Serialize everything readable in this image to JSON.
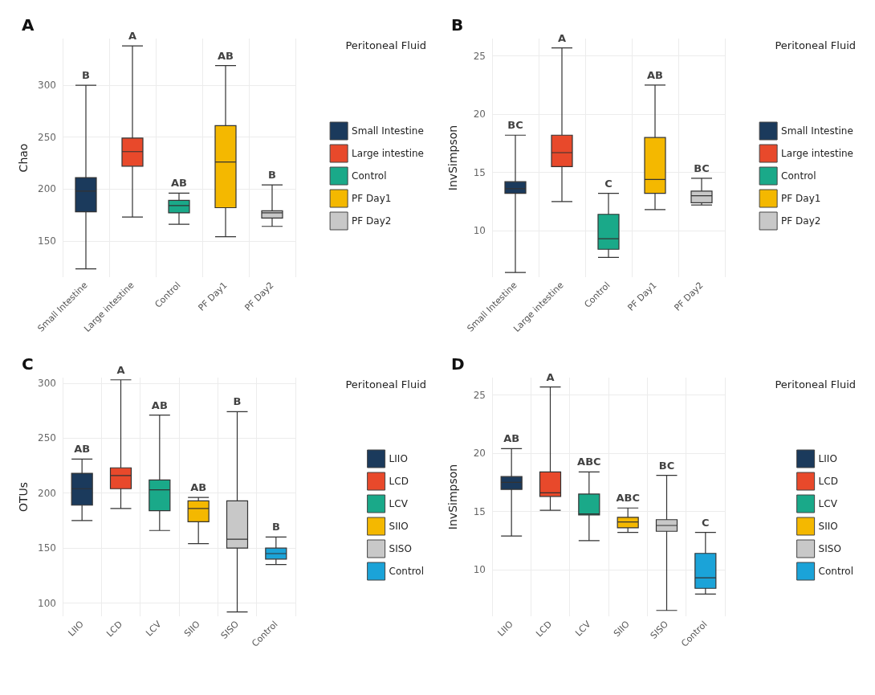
{
  "chart_data": [
    {
      "type": "box",
      "title": "A",
      "ylabel": "Chao",
      "legend_title": "Peritoneal Fluid",
      "legend": "right",
      "grid": true,
      "categories": [
        "Small Intestine",
        "Large intestine",
        "Control",
        "PF Day1",
        "PF Day2"
      ],
      "series": [
        {
          "name": "Small Intestine",
          "color": "#1b3a5c",
          "boxes": [
            {
              "low": 123,
              "q1": 178,
              "median": 198,
              "q3": 211,
              "high": 300
            },
            null,
            null,
            null,
            null
          ]
        },
        {
          "name": "Large intestine",
          "color": "#e8492b",
          "boxes": [
            null,
            {
              "low": 173,
              "q1": 222,
              "median": 236,
              "q3": 249,
              "high": 338
            },
            null,
            null,
            null
          ]
        },
        {
          "name": "Control",
          "color": "#1aa989",
          "boxes": [
            null,
            null,
            {
              "low": 166,
              "q1": 177,
              "median": 184,
              "q3": 189,
              "high": 196
            },
            null,
            null
          ]
        },
        {
          "name": "PF Day1",
          "color": "#f4b800",
          "boxes": [
            null,
            null,
            null,
            {
              "low": 154,
              "q1": 182,
              "median": 226,
              "q3": 261,
              "high": 319
            },
            null
          ]
        },
        {
          "name": "PF Day2",
          "color": "#c8c8c8",
          "boxes": [
            null,
            null,
            null,
            null,
            {
              "low": 164,
              "q1": 172,
              "median": 177,
              "q3": 179,
              "high": 204
            }
          ]
        }
      ],
      "ylim": [
        115,
        345
      ],
      "yticks": [
        150,
        200,
        250,
        300
      ],
      "annotations": [
        {
          "text": "B",
          "x": "Small Intestine",
          "y": 300
        },
        {
          "text": "A",
          "x": "Large intestine",
          "y": 338
        },
        {
          "text": "AB",
          "x": "Control",
          "y": 196
        },
        {
          "text": "AB",
          "x": "PF Day1",
          "y": 319
        },
        {
          "text": "B",
          "x": "PF Day2",
          "y": 204
        }
      ]
    },
    {
      "type": "box",
      "title": "B",
      "ylabel": "InvSimpson",
      "legend_title": "Peritoneal Fluid",
      "legend": "right",
      "grid": true,
      "categories": [
        "Small Intestine",
        "Large intestine",
        "Control",
        "PF Day1",
        "PF Day2"
      ],
      "series": [
        {
          "name": "Small Intestine",
          "color": "#1b3a5c",
          "boxes": [
            {
              "low": 6.4,
              "q1": 13.2,
              "median": 13.6,
              "q3": 14.2,
              "high": 18.2
            },
            null,
            null,
            null,
            null
          ]
        },
        {
          "name": "Large intestine",
          "color": "#e8492b",
          "boxes": [
            null,
            {
              "low": 12.5,
              "q1": 15.5,
              "median": 16.7,
              "q3": 18.2,
              "high": 25.7
            },
            null,
            null,
            null
          ]
        },
        {
          "name": "Control",
          "color": "#1aa989",
          "boxes": [
            null,
            null,
            {
              "low": 7.7,
              "q1": 8.4,
              "median": 9.3,
              "q3": 11.4,
              "high": 13.2
            },
            null,
            null
          ]
        },
        {
          "name": "PF Day1",
          "color": "#f4b800",
          "boxes": [
            null,
            null,
            null,
            {
              "low": 11.8,
              "q1": 13.2,
              "median": 14.4,
              "q3": 18.0,
              "high": 22.5
            },
            null
          ]
        },
        {
          "name": "PF Day2",
          "color": "#c8c8c8",
          "boxes": [
            null,
            null,
            null,
            null,
            {
              "low": 12.2,
              "q1": 12.4,
              "median": 13.0,
              "q3": 13.4,
              "high": 14.5
            }
          ]
        }
      ],
      "ylim": [
        6,
        26.5
      ],
      "yticks": [
        10,
        15,
        20,
        25
      ],
      "annotations": [
        {
          "text": "BC",
          "x": "Small Intestine",
          "y": 18.2
        },
        {
          "text": "A",
          "x": "Large intestine",
          "y": 25.7
        },
        {
          "text": "C",
          "x": "Control",
          "y": 13.2
        },
        {
          "text": "AB",
          "x": "PF Day1",
          "y": 22.5
        },
        {
          "text": "BC",
          "x": "PF Day2",
          "y": 14.5
        }
      ]
    },
    {
      "type": "box",
      "title": "C",
      "ylabel": "OTUs",
      "legend_title": "Peritoneal Fluid",
      "legend": "right",
      "grid": true,
      "categories": [
        "LIIO",
        "LCD",
        "LCV",
        "SIIO",
        "SISO",
        "Control"
      ],
      "series": [
        {
          "name": "LIIO",
          "color": "#1b3a5c",
          "boxes": [
            {
              "low": 175,
              "q1": 189,
              "median": 204,
              "q3": 218,
              "high": 231
            },
            null,
            null,
            null,
            null,
            null
          ]
        },
        {
          "name": "LCD",
          "color": "#e8492b",
          "boxes": [
            null,
            {
              "low": 186,
              "q1": 204,
              "median": 216,
              "q3": 223,
              "high": 303
            },
            null,
            null,
            null,
            null
          ]
        },
        {
          "name": "LCV",
          "color": "#1aa989",
          "boxes": [
            null,
            null,
            {
              "low": 166,
              "q1": 184,
              "median": 203,
              "q3": 212,
              "high": 271
            },
            null,
            null,
            null
          ]
        },
        {
          "name": "SIIO",
          "color": "#f4b800",
          "boxes": [
            null,
            null,
            null,
            {
              "low": 154,
              "q1": 174,
              "median": 186,
              "q3": 193,
              "high": 196
            },
            null,
            null
          ]
        },
        {
          "name": "SISO",
          "color": "#c8c8c8",
          "boxes": [
            null,
            null,
            null,
            null,
            {
              "low": 92,
              "q1": 150,
              "median": 158,
              "q3": 193,
              "high": 274
            },
            null
          ]
        },
        {
          "name": "Control",
          "color": "#1ba3d8",
          "boxes": [
            null,
            null,
            null,
            null,
            null,
            {
              "low": 135,
              "q1": 140,
              "median": 145,
              "q3": 150,
              "high": 160
            }
          ]
        }
      ],
      "ylim": [
        88,
        305
      ],
      "yticks": [
        100,
        150,
        200,
        250,
        300
      ],
      "annotations": [
        {
          "text": "AB",
          "x": "LIIO",
          "y": 231
        },
        {
          "text": "A",
          "x": "LCD",
          "y": 303
        },
        {
          "text": "AB",
          "x": "LCV",
          "y": 271
        },
        {
          "text": "AB",
          "x": "SIIO",
          "y": 196
        },
        {
          "text": "B",
          "x": "SISO",
          "y": 274
        },
        {
          "text": "B",
          "x": "Control",
          "y": 160
        }
      ]
    },
    {
      "type": "box",
      "title": "D",
      "ylabel": "InvSimpson",
      "legend_title": "Peritoneal Fluid",
      "legend": "right",
      "grid": true,
      "categories": [
        "LIIO",
        "LCD",
        "LCV",
        "SIIO",
        "SISO",
        "Control"
      ],
      "series": [
        {
          "name": "LIIO",
          "color": "#1b3a5c",
          "boxes": [
            {
              "low": 12.9,
              "q1": 16.9,
              "median": 17.5,
              "q3": 18.0,
              "high": 20.4
            },
            null,
            null,
            null,
            null,
            null
          ]
        },
        {
          "name": "LCD",
          "color": "#e8492b",
          "boxes": [
            null,
            {
              "low": 15.1,
              "q1": 16.3,
              "median": 16.6,
              "q3": 18.4,
              "high": 25.7
            },
            null,
            null,
            null,
            null
          ]
        },
        {
          "name": "LCV",
          "color": "#1aa989",
          "boxes": [
            null,
            null,
            {
              "low": 12.5,
              "q1": 14.7,
              "median": 14.8,
              "q3": 16.5,
              "high": 18.4
            },
            null,
            null,
            null
          ]
        },
        {
          "name": "SIIO",
          "color": "#f4b800",
          "boxes": [
            null,
            null,
            null,
            {
              "low": 13.2,
              "q1": 13.6,
              "median": 14.1,
              "q3": 14.5,
              "high": 15.3
            },
            null,
            null
          ]
        },
        {
          "name": "SISO",
          "color": "#c8c8c8",
          "boxes": [
            null,
            null,
            null,
            null,
            {
              "low": 6.5,
              "q1": 13.3,
              "median": 13.8,
              "q3": 14.3,
              "high": 18.1
            },
            null
          ]
        },
        {
          "name": "Control",
          "color": "#1ba3d8",
          "boxes": [
            null,
            null,
            null,
            null,
            null,
            {
              "low": 7.9,
              "q1": 8.4,
              "median": 9.3,
              "q3": 11.4,
              "high": 13.2
            }
          ]
        }
      ],
      "ylim": [
        6,
        26.5
      ],
      "yticks": [
        10,
        15,
        20,
        25
      ],
      "annotations": [
        {
          "text": "AB",
          "x": "LIIO",
          "y": 20.4
        },
        {
          "text": "A",
          "x": "LCD",
          "y": 25.7
        },
        {
          "text": "ABC",
          "x": "LCV",
          "y": 18.4
        },
        {
          "text": "ABC",
          "x": "SIIO",
          "y": 15.3
        },
        {
          "text": "BC",
          "x": "SISO",
          "y": 18.1
        },
        {
          "text": "C",
          "x": "Control",
          "y": 13.2
        }
      ]
    }
  ]
}
